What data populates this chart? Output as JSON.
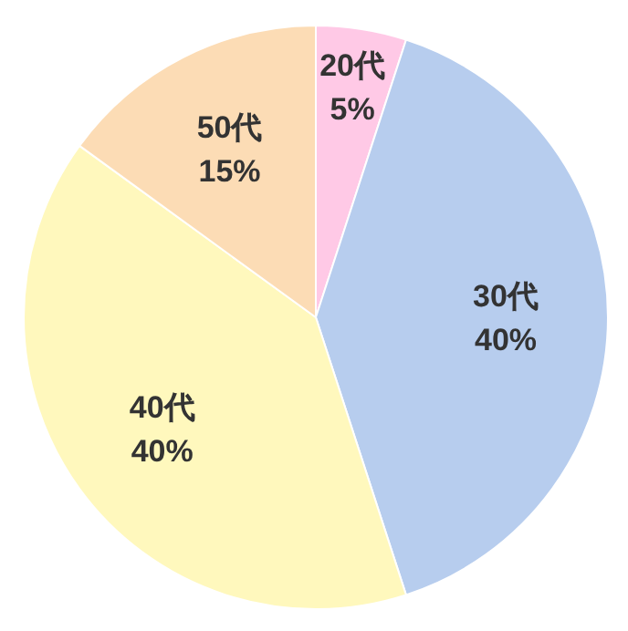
{
  "chart_data": {
    "type": "pie",
    "categories": [
      "20代",
      "30代",
      "40代",
      "50代"
    ],
    "values": [
      5,
      40,
      40,
      15
    ],
    "colors": [
      "#ffc9e6",
      "#b7cdee",
      "#fff8bd",
      "#fcdcb5"
    ],
    "value_labels": [
      "5%",
      "40%",
      "40%",
      "15%"
    ]
  }
}
